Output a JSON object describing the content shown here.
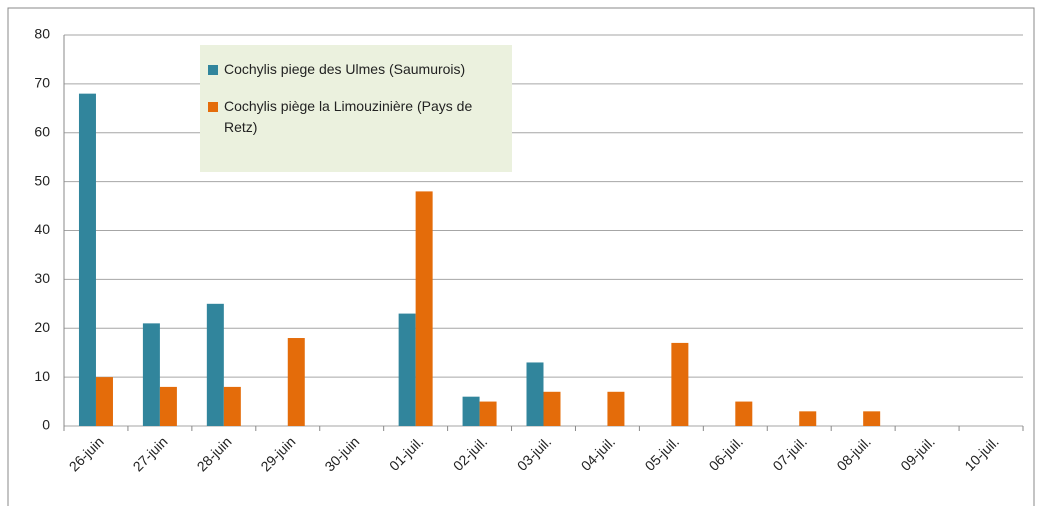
{
  "chart_data": {
    "type": "bar",
    "categories": [
      "26-juin",
      "27-juin",
      "28-juin",
      "29-juin",
      "30-juin",
      "01-juil.",
      "02-juil.",
      "03-juil.",
      "04-juil.",
      "05-juil.",
      "06-juil.",
      "07-juil.",
      "08-juil.",
      "09-juil.",
      "10-juil."
    ],
    "series": [
      {
        "name": "Cochylis piege des Ulmes (Saumurois)",
        "color": "#31859c",
        "values": [
          68,
          21,
          25,
          0,
          0,
          23,
          6,
          13,
          0,
          0,
          0,
          0,
          0,
          0,
          0
        ]
      },
      {
        "name": "Cochylis piège la Limouzinière (Pays de Retz)",
        "color": "#e46c0a",
        "values": [
          10,
          8,
          8,
          18,
          0,
          48,
          5,
          7,
          7,
          17,
          5,
          3,
          3,
          0,
          0
        ]
      }
    ],
    "ylim": [
      0,
      80
    ],
    "yticks": [
      0,
      10,
      20,
      30,
      40,
      50,
      60,
      70,
      80
    ],
    "grid": true,
    "legend": "top-left"
  }
}
